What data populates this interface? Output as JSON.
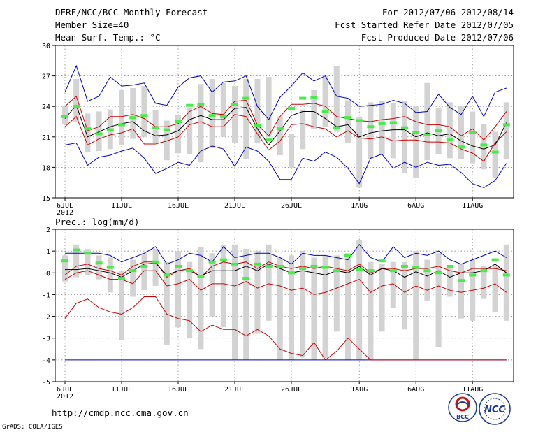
{
  "header": {
    "title": "DERF/NCC/BCC Monthly Forecast",
    "member_size": "Member Size=40",
    "variable": "Mean Surf. Temp.: °C",
    "for_range": "For 2012/07/06-2012/08/14",
    "fcst_started": "Fcst Started Refer Date 2012/07/05",
    "fcst_produced": "Fcst Produced Date 2012/07/06"
  },
  "footer": {
    "url": "http://cmdp.ncc.cma.gov.cn",
    "credit": "GrADS: COLA/IGES",
    "logo_bcc": "BCC",
    "logo_ncc": "NCC"
  },
  "chart_data": [
    {
      "type": "line",
      "title": "Mean Surf. Temp.: °C",
      "ylim": [
        15,
        30
      ],
      "yticks": [
        15,
        18,
        21,
        24,
        27,
        30
      ],
      "xtick_labels": [
        "6JUL",
        "11JUL",
        "16JUL",
        "21JUL",
        "26JUL",
        "1AUG",
        "6AUG",
        "11AUG"
      ],
      "xtick_index": [
        0,
        5,
        10,
        15,
        20,
        26,
        31,
        36
      ],
      "year_label": "2012",
      "grid": true,
      "ensemble_box": {
        "low": [
          22.3,
          22.5,
          19.5,
          19.6,
          19.8,
          20.2,
          20.8,
          21.0,
          20.4,
          18.7,
          19.4,
          19.3,
          18.5,
          19.9,
          21.0,
          20.4,
          18.8,
          20.4,
          21.0,
          19.2,
          17.9,
          19.8,
          21.8,
          22.0,
          21.5,
          20.4,
          16.0,
          18.8,
          19.3,
          18.9,
          17.4,
          17.0,
          18.7,
          19.3,
          18.9,
          18.8,
          18.4,
          17.8,
          17.0,
          18.8
        ],
        "high": [
          24.0,
          26.7,
          23.3,
          23.5,
          23.7,
          25.6,
          25.8,
          26.0,
          23.6,
          22.6,
          23.2,
          23.9,
          26.2,
          26.7,
          26.3,
          26.0,
          26.7,
          26.7,
          26.9,
          23.0,
          21.3,
          23.7,
          25.6,
          27.0,
          28.0,
          24.6,
          23.0,
          24.4,
          24.5,
          24.3,
          24.5,
          24.0,
          26.3,
          23.8,
          24.4,
          24.0,
          23.5,
          22.3,
          21.5,
          24.4
        ]
      },
      "series": [
        {
          "name": "ensemble max",
          "color": "#0000cc",
          "values": [
            20.2,
            20.4,
            18.2,
            19.0,
            19.2,
            19.6,
            19.9,
            18.9,
            17.4,
            17.9,
            18.5,
            18.2,
            19.6,
            20.1,
            19.8,
            18.1,
            20.0,
            19.6,
            18.6,
            16.8,
            16.8,
            18.9,
            18.6,
            19.5,
            19.0,
            17.9,
            16.4,
            18.9,
            19.3,
            17.9,
            18.5,
            18.0,
            18.5,
            18.2,
            18.3,
            17.5,
            16.4,
            16.0,
            16.7,
            18.4
          ]
        },
        {
          "name": "ensemble min",
          "color": "#0000cc",
          "values": [
            25.4,
            28.0,
            24.5,
            25.0,
            26.9,
            26.0,
            26.1,
            26.3,
            24.3,
            24.1,
            25.9,
            26.8,
            27.0,
            25.4,
            26.4,
            26.5,
            27.0,
            24.0,
            22.7,
            24.9,
            26.0,
            27.3,
            26.5,
            27.0,
            25.0,
            24.8,
            24.0,
            24.1,
            24.2,
            24.6,
            24.3,
            23.4,
            23.5,
            25.2,
            23.9,
            23.2,
            25.0,
            23.0,
            25.4,
            25.8
          ]
        },
        {
          "name": "upper spread",
          "color": "#cc0000",
          "values": [
            24.0,
            25.0,
            21.6,
            22.0,
            23.0,
            23.0,
            23.2,
            22.8,
            22.0,
            22.0,
            22.3,
            23.5,
            24.0,
            23.3,
            23.2,
            24.5,
            24.6,
            22.2,
            21.1,
            23.0,
            24.2,
            24.2,
            24.3,
            24.0,
            23.0,
            22.8,
            22.6,
            22.5,
            22.7,
            22.8,
            23.0,
            22.5,
            22.2,
            22.2,
            22.0,
            21.1,
            21.8,
            20.7,
            22.0,
            23.5
          ]
        },
        {
          "name": "lower spread",
          "color": "#cc0000",
          "values": [
            22.0,
            23.0,
            20.2,
            20.8,
            21.2,
            21.4,
            21.8,
            20.3,
            20.3,
            20.6,
            21.0,
            22.2,
            22.5,
            22.0,
            22.0,
            23.2,
            23.0,
            21.3,
            19.7,
            20.6,
            22.2,
            22.3,
            22.0,
            21.8,
            21.0,
            21.6,
            20.9,
            20.8,
            21.0,
            20.6,
            20.7,
            20.7,
            20.5,
            20.5,
            20.4,
            19.8,
            19.4,
            18.6,
            20.4,
            21.5
          ]
        },
        {
          "name": "ensemble mean",
          "color": "#000000",
          "values": [
            22.8,
            24.1,
            21.0,
            21.5,
            22.0,
            22.3,
            22.5,
            21.6,
            21.1,
            21.2,
            21.6,
            22.7,
            23.1,
            22.7,
            22.7,
            23.8,
            23.9,
            21.8,
            20.2,
            21.6,
            23.1,
            23.5,
            23.5,
            22.8,
            22.0,
            22.2,
            21.0,
            21.4,
            21.6,
            21.7,
            21.7,
            21.0,
            21.4,
            21.1,
            21.3,
            20.6,
            20.1,
            19.8,
            20.2,
            22.4
          ]
        },
        {
          "name": "green markers",
          "color": "#44ee44",
          "values": [
            23.0,
            24.0,
            21.8,
            21.3,
            21.7,
            22.2,
            22.9,
            23.1,
            21.9,
            21.7,
            22.5,
            24.1,
            24.2,
            23.1,
            23.0,
            24.2,
            24.8,
            22.1,
            20.7,
            21.8,
            23.8,
            24.8,
            24.9,
            23.5,
            21.9,
            22.9,
            22.6,
            22.0,
            22.3,
            22.4,
            21.9,
            21.4,
            21.2,
            21.6,
            20.7,
            20.0,
            21.4,
            20.2,
            19.5,
            22.2
          ]
        }
      ]
    },
    {
      "type": "line",
      "title": "Prec.: log(mm/d)",
      "ylim": [
        -5,
        2
      ],
      "yticks": [
        -5,
        -4,
        -3,
        -2,
        -1,
        0,
        1,
        2
      ],
      "xtick_labels": [
        "6JUL",
        "11JUL",
        "16JUL",
        "21JUL",
        "26JUL",
        "1AUG",
        "6AUG",
        "11AUG"
      ],
      "xtick_index": [
        0,
        5,
        10,
        15,
        20,
        26,
        31,
        36
      ],
      "year_label": "2012",
      "grid": true,
      "ensemble_box": {
        "low": [
          -0.4,
          -0.2,
          -0.1,
          -0.3,
          -0.9,
          -3.1,
          -1.1,
          -0.8,
          -0.6,
          -3.3,
          -2.5,
          -3.0,
          -3.5,
          -2.0,
          -2.5,
          -4.0,
          -4.0,
          -2.8,
          -2.2,
          -4.0,
          -4.0,
          -3.9,
          -4.0,
          -3.9,
          -2.7,
          -4.0,
          -4.0,
          -4.0,
          -2.7,
          -1.6,
          -2.6,
          -4.0,
          -1.3,
          -3.4,
          -1.1,
          -2.1,
          -2.2,
          -1.2,
          -1.8,
          -2.2
        ],
        "high": [
          0.8,
          1.3,
          1.1,
          0.8,
          0.7,
          0.1,
          0.6,
          0.9,
          1.1,
          0.5,
          1.0,
          0.5,
          1.2,
          0.9,
          1.3,
          1.3,
          1.1,
          1.0,
          1.3,
          0.7,
          0.8,
          1.0,
          0.7,
          0.8,
          0.8,
          0.9,
          1.5,
          0.5,
          0.4,
          0.5,
          0.5,
          1.0,
          0.6,
          0.9,
          0.2,
          0.4,
          0.6,
          0.3,
          0.3,
          1.3
        ]
      },
      "series": [
        {
          "name": "ensemble max",
          "color": "#0000cc",
          "values": [
            0.9,
            0.9,
            0.9,
            0.9,
            0.8,
            0.5,
            0.7,
            0.9,
            1.2,
            0.4,
            0.6,
            0.9,
            0.8,
            0.5,
            1.2,
            0.7,
            0.8,
            0.9,
            0.9,
            0.7,
            0.4,
            0.9,
            0.8,
            0.8,
            0.7,
            0.6,
            1.3,
            0.7,
            0.5,
            1.2,
            0.7,
            0.9,
            0.8,
            1.0,
            0.6,
            0.4,
            0.6,
            0.8,
            1.0,
            0.7
          ]
        },
        {
          "name": "ensemble min",
          "color": "#0000cc",
          "values": [
            -4.0,
            -4.0,
            -4.0,
            -4.0,
            -4.0,
            -4.0,
            -4.0,
            -4.0,
            -4.0,
            -4.0,
            -4.0,
            -4.0,
            -4.0,
            -4.0,
            -4.0,
            -4.0,
            -4.0,
            -4.0,
            -4.0,
            -4.0,
            -4.0,
            -4.0,
            -4.0,
            -4.0,
            -4.0,
            -4.0,
            -4.0,
            -4.0,
            -4.0,
            -4.0,
            -4.0,
            -4.0,
            -4.0,
            -4.0,
            -4.0,
            -4.0,
            -4.0,
            -4.0,
            -4.0,
            -4.0
          ]
        },
        {
          "name": "upper spread",
          "color": "#cc0000",
          "values": [
            -0.1,
            0.3,
            0.4,
            0.2,
            0.1,
            -0.1,
            0.3,
            0.5,
            0.5,
            -0.2,
            0.1,
            0.2,
            -0.2,
            0.3,
            0.5,
            0.4,
            0.5,
            0.2,
            0.5,
            0.3,
            0.2,
            0.3,
            0.2,
            0.3,
            0.2,
            0.1,
            0.4,
            0.0,
            0.2,
            0.2,
            0.1,
            0.2,
            0.2,
            0.3,
            0.1,
            0.0,
            0.2,
            0.2,
            0.2,
            0.1
          ]
        },
        {
          "name": "lower spread",
          "color": "#cc0000",
          "values": [
            -2.1,
            -1.4,
            -1.2,
            -1.6,
            -1.8,
            -1.9,
            -1.6,
            -1.1,
            -1.1,
            -1.9,
            -2.1,
            -2.2,
            -2.7,
            -2.4,
            -2.6,
            -2.6,
            -2.9,
            -2.6,
            -2.9,
            -3.5,
            -3.7,
            -3.8,
            -3.2,
            -4.0,
            -3.6,
            -3.0,
            -3.5,
            -4.0,
            -4.0,
            -4.0,
            -4.0,
            -4.0,
            -4.0,
            -4.0,
            -4.0,
            -4.0,
            -4.0,
            -4.0,
            -4.0,
            -4.0
          ]
        },
        {
          "name": "ensemble mean",
          "color": "#000000",
          "values": [
            0.15,
            0.15,
            0.2,
            0.1,
            0.0,
            -0.2,
            0.1,
            0.4,
            0.45,
            -0.1,
            0.1,
            0.1,
            -0.15,
            0.1,
            0.1,
            0.1,
            0.3,
            0.1,
            0.4,
            0.2,
            0.0,
            0.1,
            0.0,
            -0.1,
            0.1,
            0.0,
            0.3,
            -0.1,
            0.2,
            0.1,
            -0.2,
            0.05,
            -0.15,
            0.1,
            -0.2,
            0.0,
            0.0,
            0.1,
            0.4,
            0.0
          ]
        },
        {
          "name": "lowest member",
          "color": "#cc0000",
          "values": [
            -0.3,
            0.0,
            0.1,
            -0.1,
            -0.3,
            -0.3,
            -0.5,
            0.1,
            0.1,
            -0.6,
            -0.5,
            -0.3,
            -0.8,
            -0.5,
            -0.5,
            -0.6,
            -0.4,
            -0.7,
            -0.5,
            -0.6,
            -0.8,
            -0.7,
            -1.0,
            -0.9,
            -0.7,
            -0.5,
            -0.3,
            -0.9,
            -0.6,
            -0.5,
            -0.9,
            -0.6,
            -0.8,
            -0.6,
            -0.8,
            -0.9,
            -0.8,
            -0.7,
            -0.5,
            -0.9
          ]
        },
        {
          "name": "green markers",
          "color": "#44ee44",
          "values": [
            0.55,
            1.05,
            0.9,
            0.45,
            0.25,
            -0.25,
            0.1,
            0.3,
            0.5,
            -0.1,
            0.3,
            0.1,
            -0.15,
            0.5,
            0.6,
            0.4,
            -0.25,
            0.4,
            0.3,
            0.3,
            0.0,
            0.2,
            0.3,
            0.25,
            0.1,
            0.8,
            0.15,
            0.1,
            0.55,
            0.1,
            0.3,
            0.25,
            0.1,
            0.0,
            0.3,
            -0.35,
            -0.1,
            0.1,
            0.6,
            -0.1
          ]
        }
      ]
    }
  ]
}
